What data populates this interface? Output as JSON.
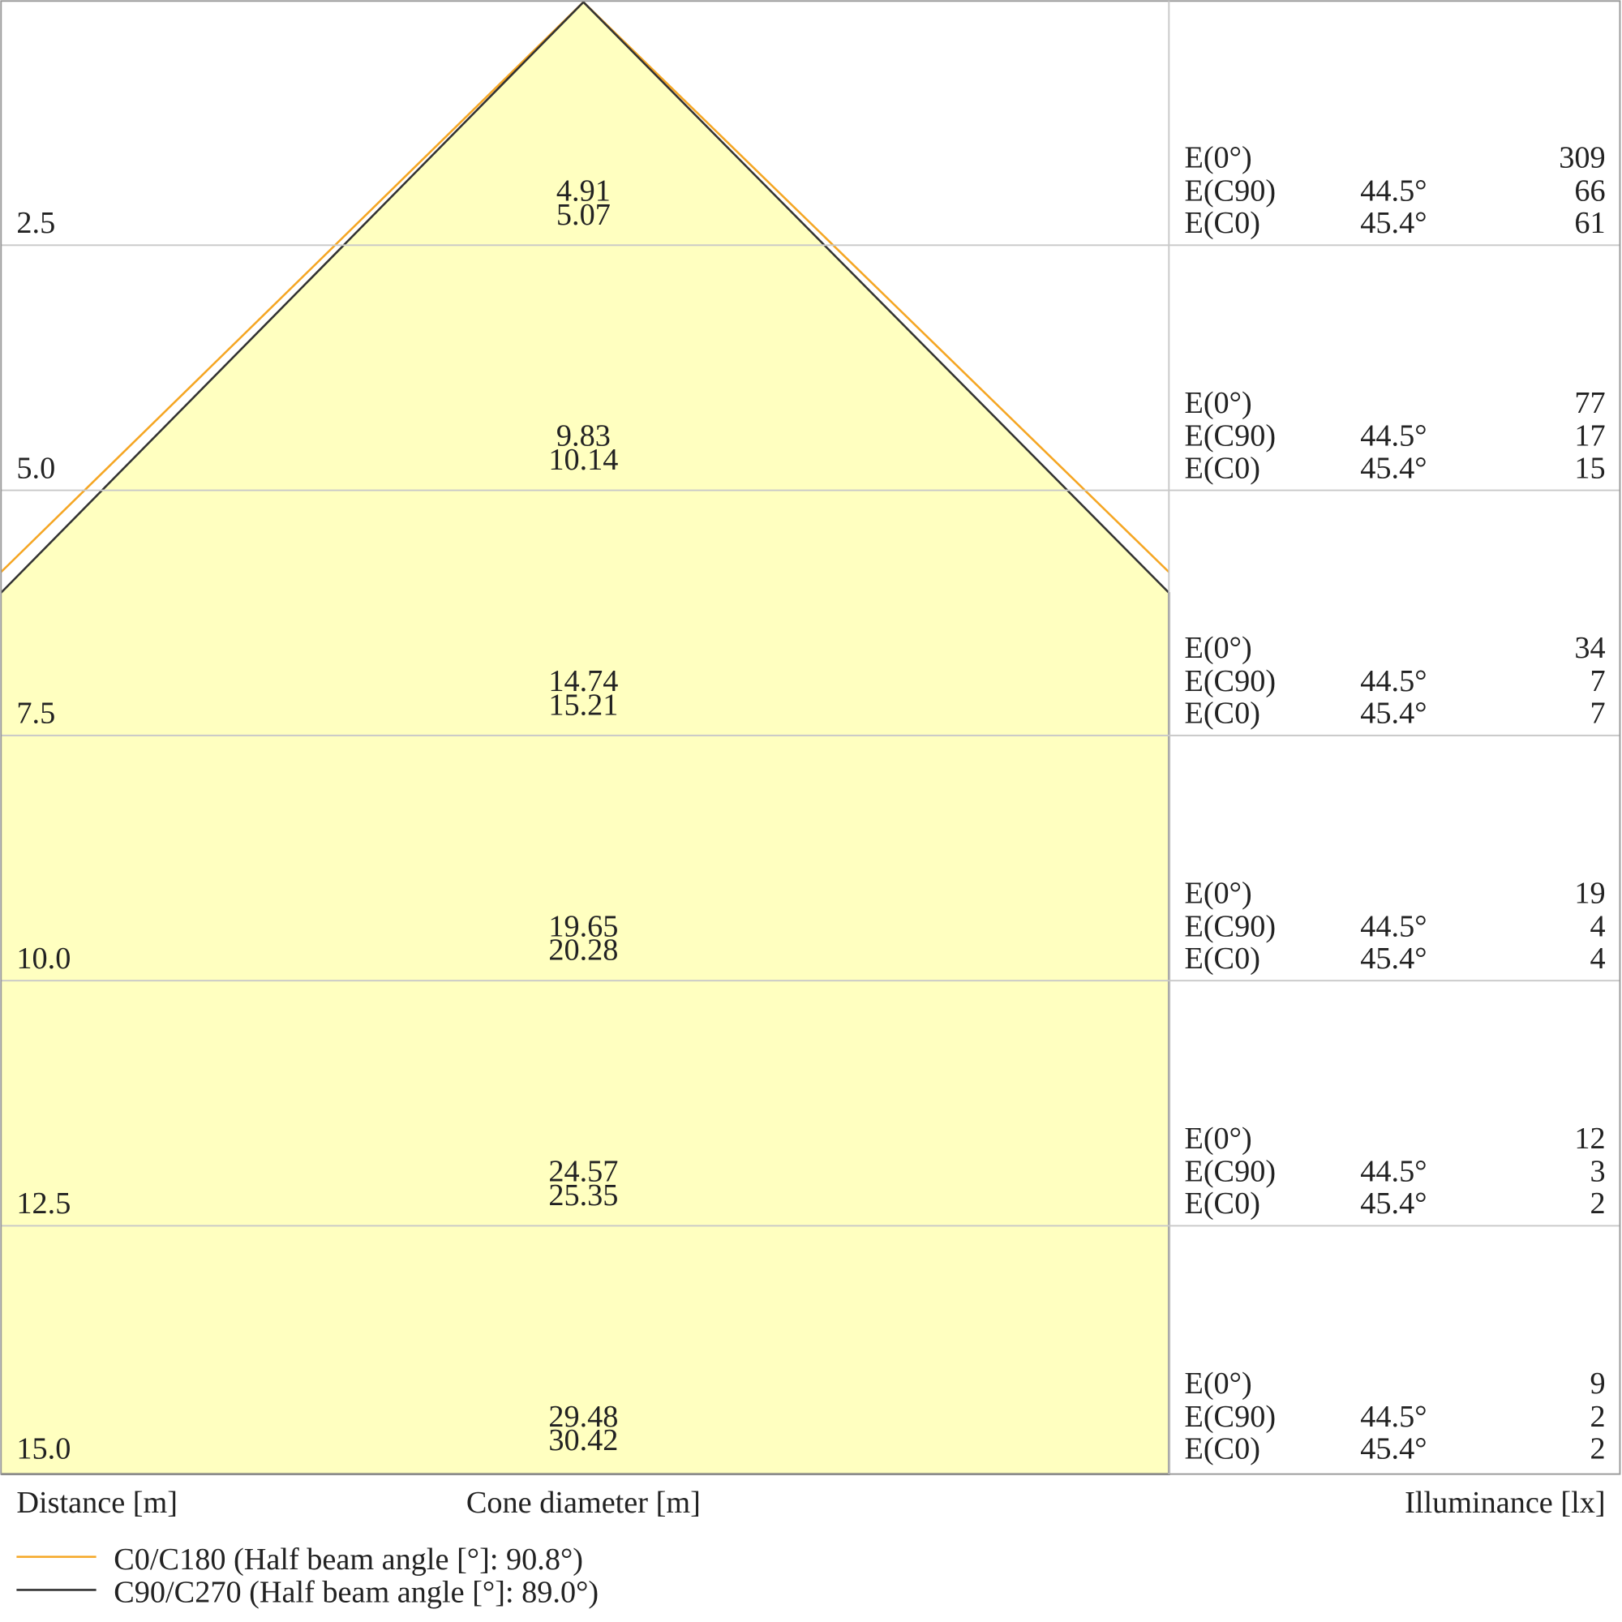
{
  "rows": [
    {
      "distance": "2.5",
      "diameters": [
        "4.91",
        "5.07"
      ],
      "e0": "309",
      "ec90_angle": "44.5°",
      "ec90": "66",
      "ec0_angle": "45.4°",
      "ec0": "61"
    },
    {
      "distance": "5.0",
      "diameters": [
        "9.83",
        "10.14"
      ],
      "e0": "77",
      "ec90_angle": "44.5°",
      "ec90": "17",
      "ec0_angle": "45.4°",
      "ec0": "15"
    },
    {
      "distance": "7.5",
      "diameters": [
        "14.74",
        "15.21"
      ],
      "e0": "34",
      "ec90_angle": "44.5°",
      "ec90": "7",
      "ec0_angle": "45.4°",
      "ec0": "7"
    },
    {
      "distance": "10.0",
      "diameters": [
        "19.65",
        "20.28"
      ],
      "e0": "19",
      "ec90_angle": "44.5°",
      "ec90": "4",
      "ec0_angle": "45.4°",
      "ec0": "4"
    },
    {
      "distance": "12.5",
      "diameters": [
        "24.57",
        "25.35"
      ],
      "e0": "12",
      "ec90_angle": "44.5°",
      "ec90": "3",
      "ec0_angle": "45.4°",
      "ec0": "2"
    },
    {
      "distance": "15.0",
      "diameters": [
        "29.48",
        "30.42"
      ],
      "e0": "9",
      "ec90_angle": "44.5°",
      "ec90": "2",
      "ec0_angle": "45.4°",
      "ec0": "2"
    }
  ],
  "row_labels": {
    "e0": "E(0°)",
    "ec90": "E(C90)",
    "ec0": "E(C0)"
  },
  "axis_labels": {
    "distance": "Distance [m]",
    "cone": "Cone diameter [m]",
    "illuminance": "Illuminance [lx]"
  },
  "cone_fill": "#ffffc0",
  "legend": [
    {
      "label": "C0/C180 (Half beam angle [°]: 90.8°)",
      "color": "#f5a623"
    },
    {
      "label": "C90/C270 (Half beam angle [°]: 89.0°)",
      "color": "#333333"
    }
  ]
}
